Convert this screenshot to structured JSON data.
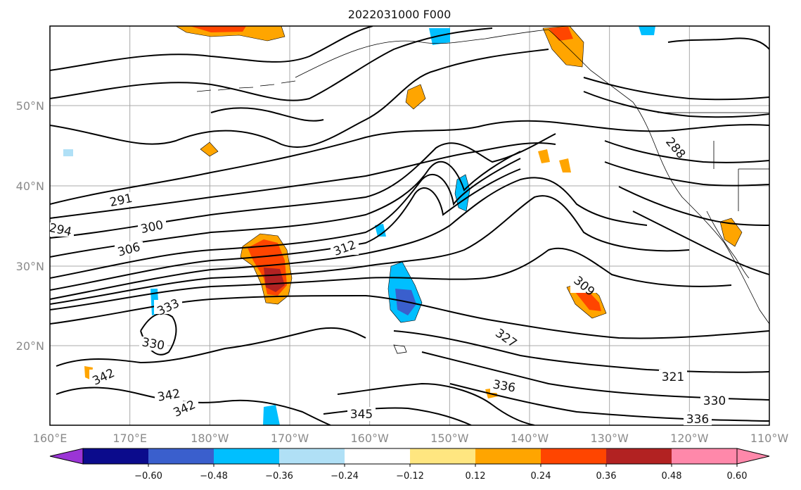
{
  "title": "2022031000 F000",
  "map": {
    "lon_range": [
      "160°E",
      "110°W"
    ],
    "lat_range": [
      "~10°N",
      "~60°N"
    ],
    "x_ticks": [
      "160°E",
      "170°E",
      "180°W",
      "170°W",
      "160°W",
      "150°W",
      "140°W",
      "130°W",
      "120°W",
      "110°W"
    ],
    "y_ticks": [
      "20°N",
      "30°N",
      "40°N",
      "50°N"
    ],
    "grid": true,
    "contour_color": "#000000",
    "contour_labels": [
      "291",
      "294",
      "300",
      "306",
      "312",
      "309",
      "288",
      "333",
      "330",
      "342",
      "342",
      "342",
      "345",
      "336",
      "327",
      "321",
      "330",
      "336"
    ]
  },
  "colorbar": {
    "ticks": [
      "−0.60",
      "−0.48",
      "−0.36",
      "−0.24",
      "−0.12",
      "0.12",
      "0.24",
      "0.36",
      "0.48",
      "0.60"
    ],
    "colors": [
      "#9b35d6",
      "#0b0b8c",
      "#3a5fcd",
      "#00bfff",
      "#b0e0f6",
      "#ffffff",
      "#ffe680",
      "#ffa500",
      "#ff4500",
      "#b22222",
      "#ff88aa",
      "#ff88aa"
    ],
    "extend": "both"
  }
}
